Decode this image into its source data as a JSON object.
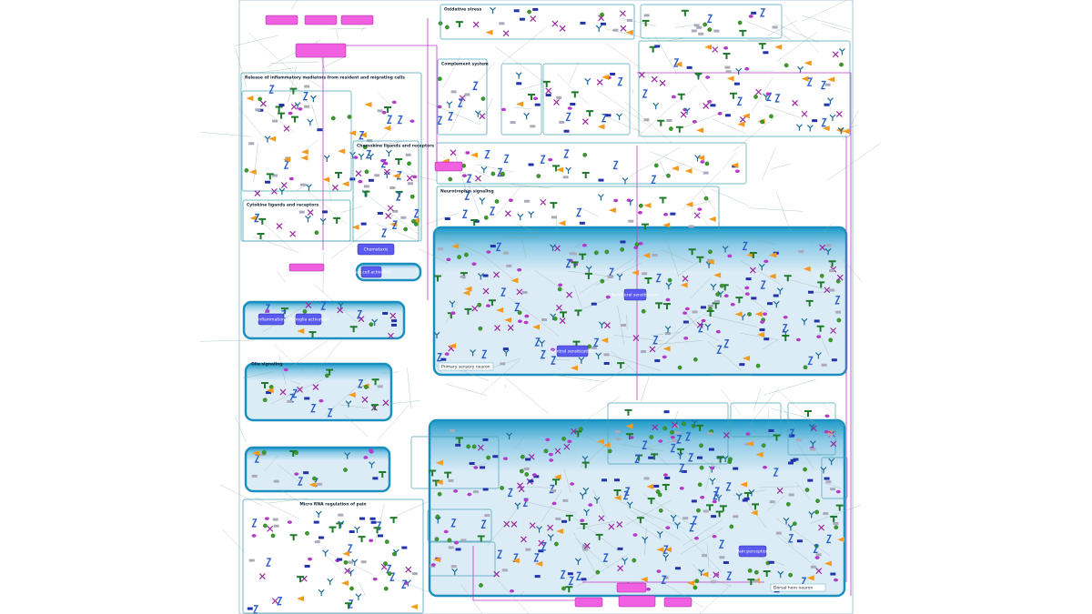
{
  "panels": [
    {
      "title": "Oxidative stress"
    },
    {
      "title": "Release of inflammatory mediators from resident and migrating cells"
    },
    {
      "title": "Complement system"
    },
    {
      "title": "Neurotrophin signaling"
    },
    {
      "title": "Cytokine ligands and receptors"
    },
    {
      "title": "Chemokine ligands and receptors"
    },
    {
      "title": "Glia signaling"
    },
    {
      "title": "Micro RNA regulation of pain"
    }
  ],
  "cells": [
    {
      "label": "Primary sensory neuron"
    },
    {
      "label": "Dorsal horn neuron"
    }
  ],
  "nodes": [
    {
      "label": "Chemotaxis"
    },
    {
      "label": "Mast cell activation"
    },
    {
      "label": "Inflammation"
    },
    {
      "label": "Microglia activation"
    },
    {
      "label": "Central sensitization"
    },
    {
      "label": "Peripheral sensitization"
    },
    {
      "label": "Pain perception"
    }
  ]
}
